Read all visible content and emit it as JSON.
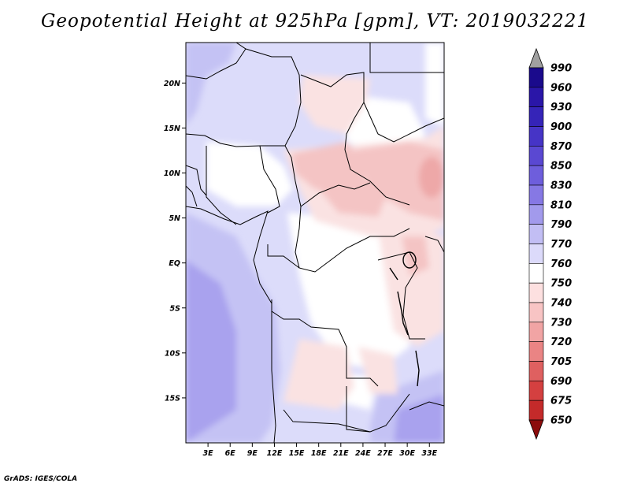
{
  "title": "Geopotential Height at 925hPa [gpm], VT: 2019032221",
  "credit": "GrADS: IGES/COLA",
  "chart_data": {
    "type": "map",
    "variable": "Geopotential Height at 925hPa",
    "units": "gpm",
    "valid_time": "2019032221",
    "region": "Central Africa",
    "lon_range": [
      0,
      35
    ],
    "lat_range": [
      -20,
      24.5
    ],
    "x_ticks": [
      "3E",
      "6E",
      "9E",
      "12E",
      "15E",
      "18E",
      "21E",
      "24E",
      "27E",
      "30E",
      "33E"
    ],
    "y_ticks": [
      "20N",
      "15N",
      "10N",
      "5N",
      "EQ",
      "5S",
      "10S",
      "15S"
    ],
    "colorbar": {
      "levels": [
        "990",
        "960",
        "930",
        "900",
        "870",
        "850",
        "830",
        "810",
        "790",
        "770",
        "760",
        "750",
        "740",
        "730",
        "720",
        "705",
        "690",
        "675",
        "650"
      ],
      "colors": [
        "#1a0a8c",
        "#2a16a8",
        "#3524b8",
        "#4634c6",
        "#5a48d2",
        "#6e5edc",
        "#8678e4",
        "#a29aec",
        "#c2bef4",
        "#dcdafa",
        "#ffffff",
        "#fde0e0",
        "#f8c4c4",
        "#f1a4a4",
        "#ea8484",
        "#df6060",
        "#d44040",
        "#c42a2a",
        "#a81818",
        "#8c0c0c"
      ],
      "extend": "both"
    },
    "field_colors": {
      "white": "#ffffff",
      "light_blue": "#dcdcfa",
      "mid_blue": "#c4c2f4",
      "deep_blue": "#a9a2ee",
      "light_red": "#fae2e2",
      "mid_red": "#f4c4c4",
      "deep_red": "#eea8a8"
    }
  }
}
